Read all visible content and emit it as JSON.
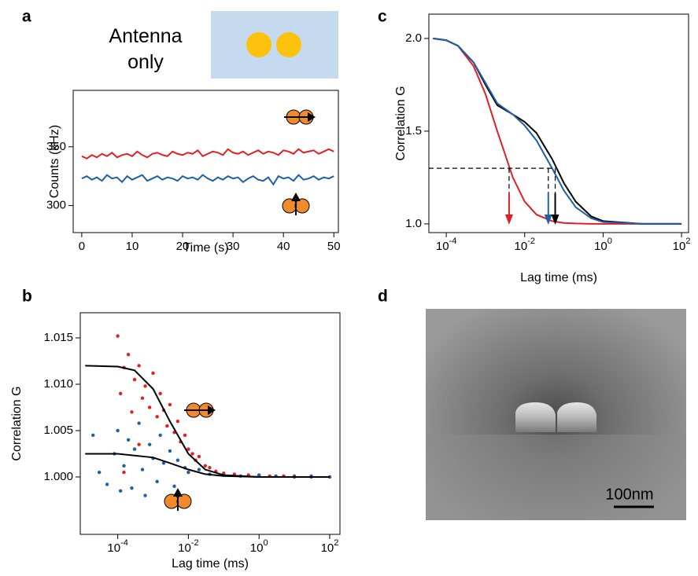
{
  "chart_data": [
    {
      "type": "line",
      "panel_label": "a",
      "annotation": "Antenna only",
      "x_label": "Time (s)",
      "y_label": "Counts (kHz)",
      "x": [
        0,
        1,
        2,
        3,
        4,
        5,
        6,
        7,
        8,
        9,
        10,
        11,
        12,
        13,
        14,
        15,
        16,
        17,
        18,
        19,
        20,
        21,
        22,
        23,
        24,
        25,
        26,
        27,
        28,
        29,
        30,
        31,
        32,
        33,
        34,
        35,
        36,
        37,
        38,
        39,
        40,
        41,
        42,
        43,
        44,
        45,
        46,
        47,
        48,
        49,
        50
      ],
      "series": [
        {
          "color": "#e31e24",
          "values": [
            342,
            340,
            343,
            341,
            344,
            342,
            345,
            341,
            343,
            344,
            342,
            346,
            343,
            341,
            344,
            345,
            343,
            342,
            346,
            344,
            343,
            345,
            344,
            347,
            342,
            344,
            346,
            345,
            343,
            348,
            345,
            344,
            346,
            343,
            345,
            347,
            344,
            346,
            345,
            343,
            347,
            346,
            344,
            348,
            345,
            346,
            347,
            344,
            346,
            348,
            346
          ]
        },
        {
          "color": "#1f5fa8",
          "values": [
            323,
            325,
            322,
            324,
            321,
            326,
            323,
            324,
            320,
            325,
            322,
            324,
            326,
            321,
            323,
            325,
            322,
            324,
            323,
            321,
            325,
            323,
            324,
            322,
            326,
            323,
            321,
            324,
            322,
            325,
            323,
            324,
            320,
            323,
            325,
            322,
            321,
            324,
            318,
            325,
            323,
            324,
            321,
            326,
            322,
            323,
            325,
            322,
            324,
            323,
            325
          ]
        }
      ],
      "xlim": [
        -1.7,
        50.9
      ],
      "xticks": [
        0,
        10,
        20,
        30,
        40,
        50
      ],
      "ylim": [
        277,
        398
      ],
      "yticks": [
        300,
        350
      ]
    },
    {
      "type": "scatter",
      "panel_label": "b",
      "x_label": "Lag time (ms)",
      "y_label": "Correlation G",
      "xscale": "log",
      "series": [
        {
          "kind": "scatter",
          "color": "#e31e24",
          "x": [
            0.0001,
            0.00012,
            0.00015,
            0.0002,
            0.00025,
            0.0003,
            0.0004,
            0.0005,
            0.0006,
            0.0008,
            0.001,
            0.0013,
            0.0016,
            0.002,
            0.0025,
            0.003,
            0.004,
            0.005,
            0.006,
            0.008,
            0.01,
            0.013,
            0.016,
            0.02,
            0.03,
            0.04,
            0.06,
            0.1,
            0.2,
            0.5,
            1,
            2,
            5,
            10,
            30,
            100,
            0.00015,
            0.0004
          ],
          "values": [
            1.0152,
            1.009,
            1.0118,
            1.0132,
            1.007,
            1.0105,
            1.012,
            1.0085,
            1.0098,
            1.0075,
            1.0112,
            1.0065,
            1.009,
            1.0072,
            1.0055,
            1.0078,
            1.0048,
            1.006,
            1.0038,
            1.0045,
            1.003,
            1.0025,
            1.0018,
            1.0022,
            1.0012,
            1.001,
            1.0006,
            1.0004,
            1.0003,
            1.0002,
            1.0002,
            1.0001,
            1.0001,
            1.0001,
            1.0,
            1.0,
            1.0005,
            1.0035
          ]
        },
        {
          "kind": "scatter",
          "color": "#1f5fa8",
          "x": [
            2e-05,
            3e-05,
            5e-05,
            8e-05,
            0.0001,
            0.00012,
            0.00015,
            0.0002,
            0.00025,
            0.0003,
            0.0004,
            0.0005,
            0.0006,
            0.0008,
            0.001,
            0.0013,
            0.0016,
            0.002,
            0.003,
            0.004,
            0.005,
            0.008,
            0.01,
            0.02,
            0.04,
            0.1,
            0.3,
            1,
            3,
            10,
            30,
            100
          ],
          "values": [
            1.0045,
            1.0005,
            0.9992,
            1.0025,
            1.005,
            0.9985,
            1.0012,
            1.004,
            0.9988,
            1.003,
            1.0058,
            1.0008,
            0.998,
            1.0035,
            1.002,
            0.9995,
            1.0045,
            1.0015,
            1.0028,
            0.999,
            1.0018,
            1.001,
            1.0005,
            1.0008,
            1.0003,
            1.0002,
            1.0001,
            1.0002,
            1.0001,
            1.0,
            1.0001,
            1.0
          ]
        },
        {
          "kind": "line",
          "color": "#000000",
          "x": [
            1.2e-05,
            0.0001,
            0.0003,
            0.001,
            0.003,
            0.01,
            0.03,
            0.1,
            1,
            100
          ],
          "values": [
            1.012,
            1.0119,
            1.0115,
            1.0095,
            1.006,
            1.0025,
            1.0008,
            1.0002,
            1.0,
            1.0
          ]
        },
        {
          "kind": "line",
          "color": "#000000",
          "x": [
            1.2e-05,
            0.0001,
            0.001,
            0.003,
            0.01,
            0.03,
            0.1,
            1,
            100
          ],
          "values": [
            1.0025,
            1.0025,
            1.0021,
            1.0015,
            1.0008,
            1.0003,
            1.0001,
            1.0,
            1.0
          ]
        }
      ],
      "xlim": [
        8.7e-06,
        195
      ],
      "xticks": [
        {
          "value": 0.0001,
          "label": "10-4"
        },
        {
          "value": 0.01,
          "label": "10-2"
        },
        {
          "value": 1,
          "label": "100"
        },
        {
          "value": 100,
          "label": "102"
        }
      ],
      "ylim": [
        0.99381,
        1.01771
      ],
      "yticks": [
        {
          "value": 1.0,
          "label": "1.000"
        },
        {
          "value": 1.005,
          "label": "1.005"
        },
        {
          "value": 1.01,
          "label": "1.010"
        },
        {
          "value": 1.015,
          "label": "1.015"
        }
      ]
    },
    {
      "type": "line",
      "panel_label": "c",
      "x_label": "Lag time (ms)",
      "y_label": "Correlation G",
      "xscale": "log",
      "x": [
        4.6e-05,
        0.0001,
        0.0002,
        0.0005,
        0.001,
        0.002,
        0.005,
        0.01,
        0.02,
        0.05,
        0.1,
        0.2,
        0.5,
        1,
        10,
        100
      ],
      "series": [
        {
          "color": "#e31e24",
          "values": [
            2.0,
            1.99,
            1.96,
            1.85,
            1.7,
            1.5,
            1.25,
            1.12,
            1.05,
            1.015,
            1.005,
            1.002,
            1.0,
            1.0,
            1.0,
            1.0
          ]
        },
        {
          "color": "#000000",
          "values": [
            2.0,
            1.99,
            1.96,
            1.87,
            1.75,
            1.64,
            1.59,
            1.55,
            1.49,
            1.35,
            1.22,
            1.12,
            1.04,
            1.015,
            1.0,
            1.0
          ]
        },
        {
          "color": "#1f5fa8",
          "values": [
            2.0,
            1.99,
            1.96,
            1.87,
            1.76,
            1.65,
            1.59,
            1.53,
            1.45,
            1.3,
            1.18,
            1.09,
            1.03,
            1.01,
            1.0,
            1.0
          ]
        }
      ],
      "dashed_y": 1.3,
      "arrows": [
        {
          "x": 0.004,
          "color": "#e31e24"
        },
        {
          "x": 0.04,
          "color": "#1f5fa8"
        },
        {
          "x": 0.06,
          "color": "#000000"
        }
      ],
      "xlim": [
        3.6e-05,
        151
      ],
      "xticks": [
        {
          "value": 0.0001,
          "label": "10-4"
        },
        {
          "value": 0.01,
          "label": "10-2"
        },
        {
          "value": 1,
          "label": "100"
        },
        {
          "value": 100,
          "label": "102"
        }
      ],
      "ylim": [
        0.953,
        2.131
      ],
      "yticks": [
        {
          "value": 1.0,
          "label": "1.0"
        },
        1.5,
        {
          "value": 2.0,
          "label": "2.0"
        }
      ]
    }
  ],
  "image_panel": {
    "panel_label": "d",
    "scale_bar": "100nm"
  }
}
